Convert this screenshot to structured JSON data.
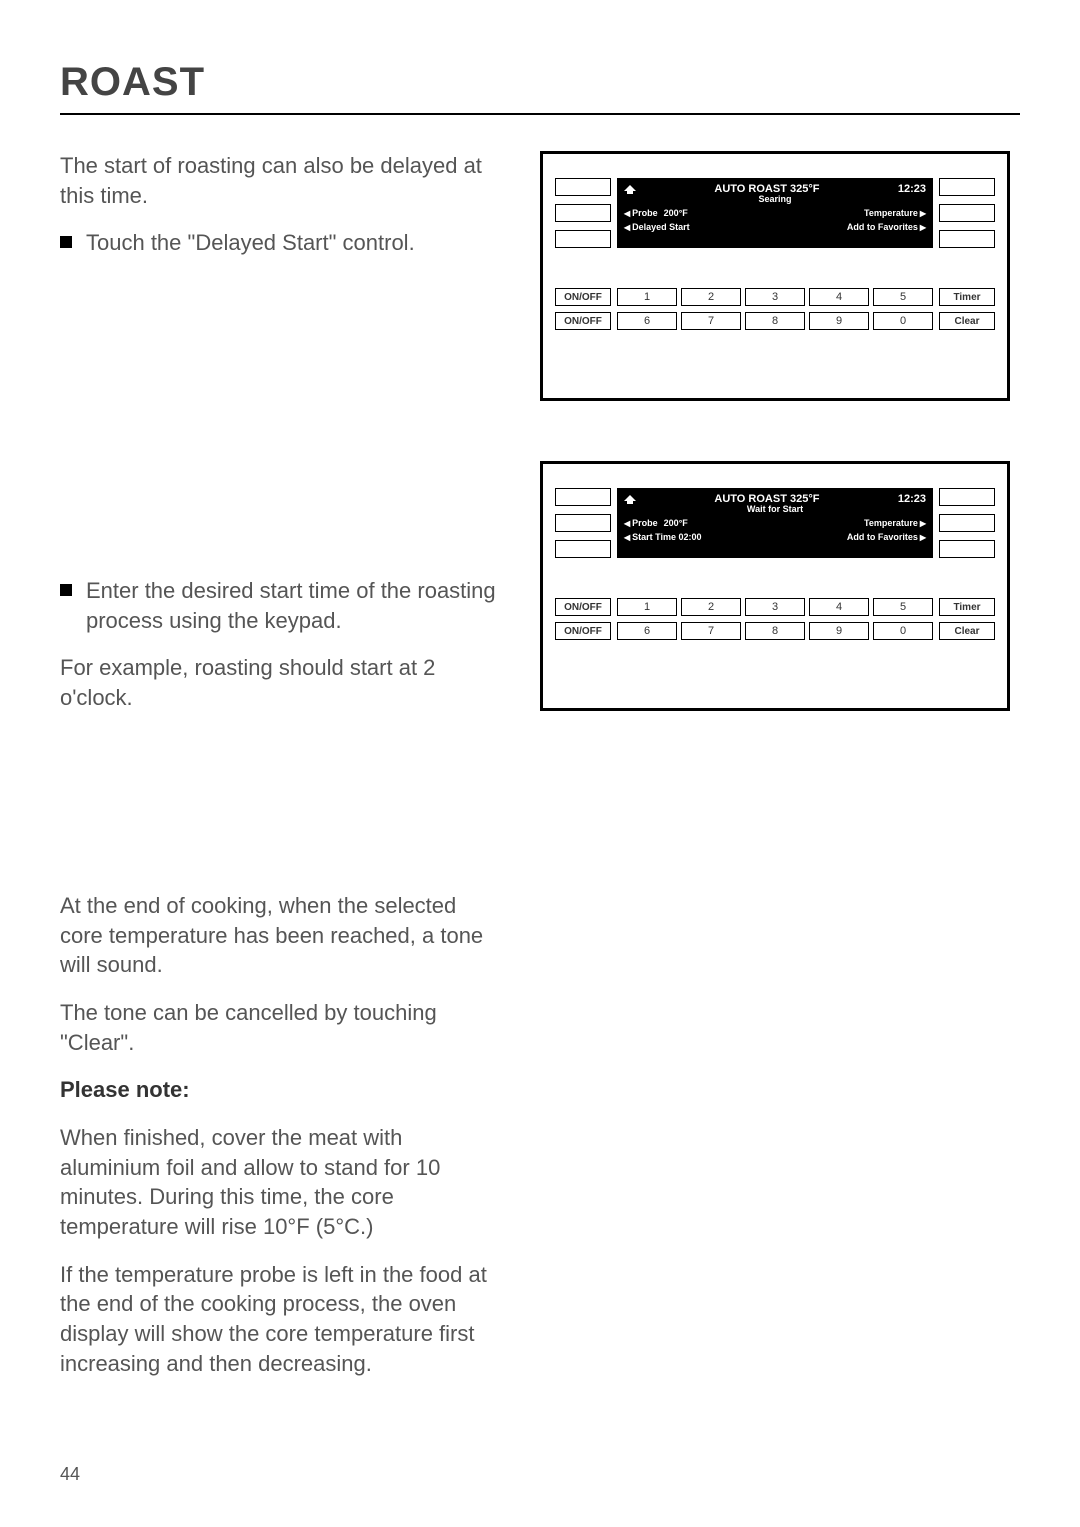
{
  "title": "ROAST",
  "pageNumber": "44",
  "left": {
    "intro": "The start of roasting can also be delayed at this time.",
    "bullet1": "Touch the \"Delayed Start\" control.",
    "bullet2": "Enter the desired start time of the roasting process using the keypad.",
    "para2": "For example, roasting should start at 2 o'clock.",
    "para3": "At the end of cooking, when the selected core temperature has been reached, a tone will sound.",
    "para4": "The tone can be cancelled by touching \"Clear\".",
    "noteHeading": "Please note:",
    "para5": "When finished, cover the meat with aluminium foil and allow to stand for 10 minutes. During this time, the core temperature will rise 10°F (5°C.)",
    "para6": "If the temperature probe is left in the food at the end of the cooking process, the oven display will show the core temperature first increasing and then decreasing."
  },
  "panel1": {
    "title": "AUTO ROAST 325°F",
    "subtitle": "Searing",
    "time": "12:23",
    "probe": "Probe",
    "probeTemp": "200°F",
    "temperature": "Temperature",
    "row3left": "Delayed Start",
    "row3right": "Add to Favorites"
  },
  "panel2": {
    "title": "AUTO ROAST 325°F",
    "subtitle": "Wait for Start",
    "time": "12:23",
    "probe": "Probe",
    "probeTemp": "200°F",
    "temperature": "Temperature",
    "row3left": "Start Time 02:00",
    "row3right": "Add to Favorites"
  },
  "buttons": {
    "onoff": "ON/OFF",
    "timer": "Timer",
    "clear": "Clear"
  },
  "keys": {
    "r1": [
      "1",
      "2",
      "3",
      "4",
      "5"
    ],
    "r2": [
      "6",
      "7",
      "8",
      "9",
      "0"
    ]
  }
}
